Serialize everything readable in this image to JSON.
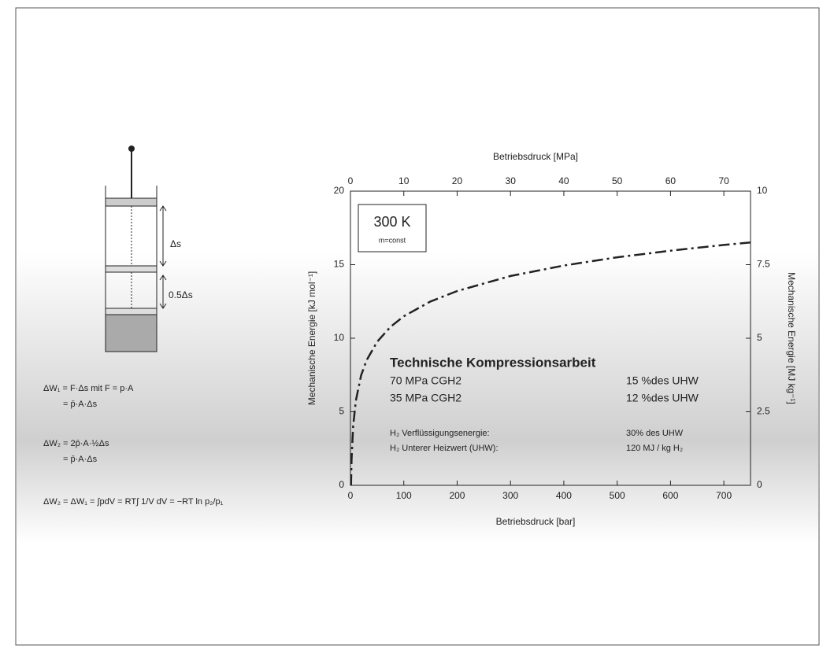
{
  "chart_data": {
    "type": "line",
    "x_label": "Betriebsdruck  [bar]",
    "x2_label": "Betriebsdruck  [MPa]",
    "y_label": "Mechanische Energie  [kJ mol⁻¹]",
    "y2_label": "Mechanische Energie  [MJ kg⁻¹]",
    "xlim": [
      0,
      750
    ],
    "xticks": [
      0,
      100,
      200,
      300,
      400,
      500,
      600,
      700
    ],
    "x2lim": [
      0,
      75
    ],
    "x2ticks": [
      0,
      10,
      20,
      30,
      40,
      50,
      60,
      70
    ],
    "ylim": [
      0,
      20
    ],
    "yticks": [
      0,
      5,
      10,
      15,
      20
    ],
    "y2lim": [
      0,
      10
    ],
    "y2ticks": [
      0,
      2.5,
      5,
      7.5,
      10
    ],
    "x": [
      1,
      2,
      5,
      10,
      20,
      30,
      50,
      75,
      100,
      150,
      200,
      300,
      400,
      500,
      600,
      700,
      750
    ],
    "values": [
      0,
      1.73,
      4.01,
      5.74,
      7.47,
      8.48,
      9.76,
      10.77,
      11.49,
      12.5,
      13.21,
      14.23,
      14.94,
      15.5,
      15.95,
      16.34,
      16.51
    ],
    "color": "#222222",
    "box": {
      "title": "300 K",
      "subtitle": "m=const"
    },
    "annotation": {
      "title": "Technische Kompressionsarbeit",
      "rows": [
        [
          "70 MPa CGH2",
          "15 %des UHW"
        ],
        [
          "35 MPa CGH2",
          "12 %des UHW"
        ]
      ],
      "notes": [
        [
          "H₂ Verflüssigungsenergie:",
          "30% des UHW"
        ],
        [
          "H₂ Unterer Heizwert (UHW):",
          "120 MJ / kg H₂"
        ]
      ]
    }
  },
  "diagram": {
    "labels": [
      "Δs",
      "0.5Δs"
    ],
    "formulas": [
      "ΔW₁ = F·Δs  mit  F = p·A",
      "= p̄·A·Δs",
      "ΔW₂ = 2p̄·A·½Δs",
      "= p̄·A·Δs",
      "ΔW₂ = ΔW₁ = ∫pdV = RT∫ 1/V dV = −RT ln p₂/p₁"
    ]
  }
}
